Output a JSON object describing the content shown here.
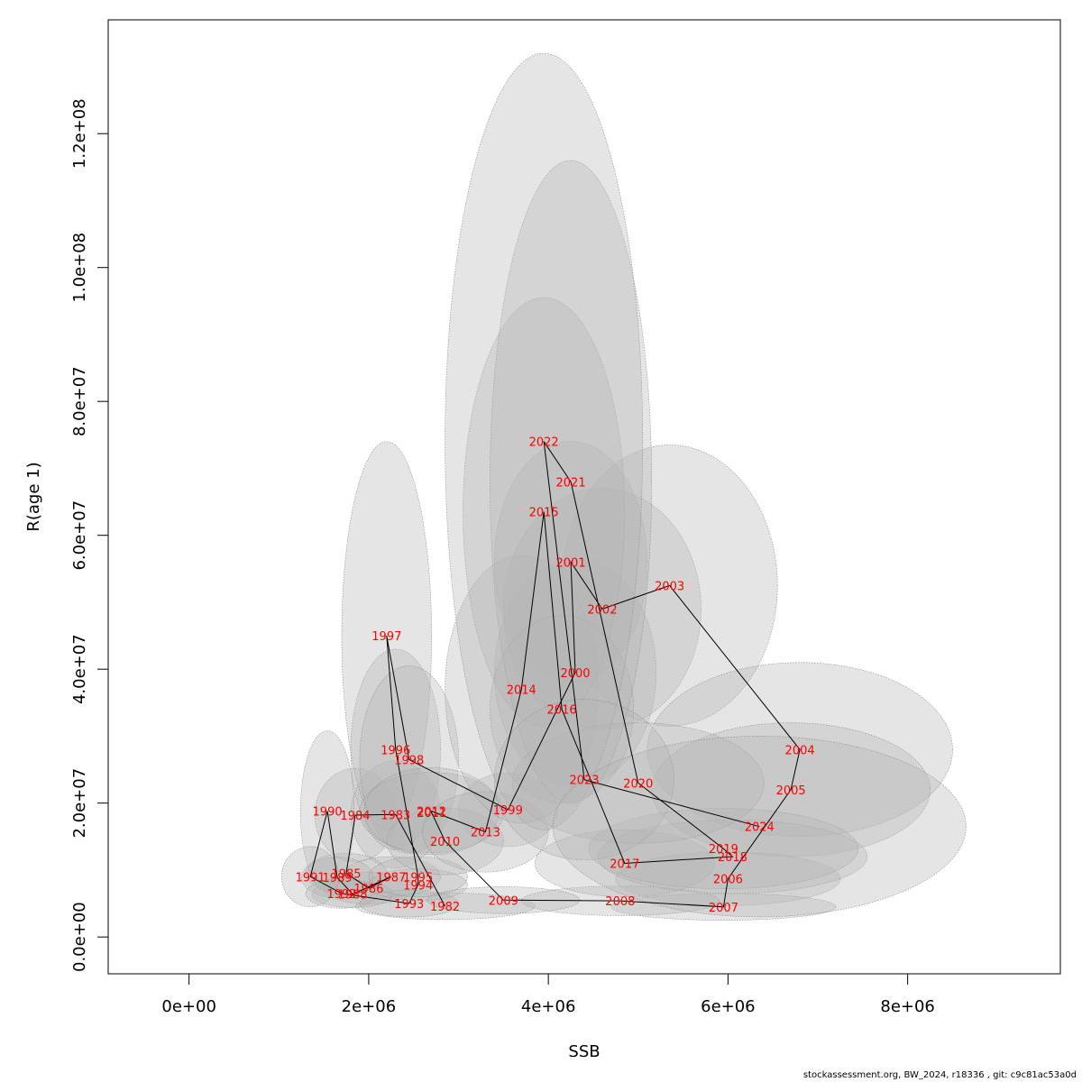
{
  "chart_data": {
    "type": "scatter",
    "subtype": "stock-recruitment trajectory with uncertainty ellipses",
    "xlabel": "SSB",
    "ylabel": "R(age 1)",
    "xlim": [
      -900000,
      9700000
    ],
    "ylim": [
      -5500000,
      137000000
    ],
    "xticks": [
      0,
      2000000,
      4000000,
      6000000,
      8000000
    ],
    "xtick_labels": [
      "0e+00",
      "2e+06",
      "4e+06",
      "6e+06",
      "8e+06"
    ],
    "yticks": [
      0,
      20000000,
      40000000,
      60000000,
      80000000,
      100000000,
      120000000
    ],
    "ytick_labels": [
      "0.0e+00",
      "2.0e+07",
      "4.0e+07",
      "6.0e+07",
      "8.0e+07",
      "1.0e+08",
      "1.2e+08"
    ],
    "label_color": "#ff0000",
    "ellipse_color": "#b4b4b4",
    "points": [
      {
        "year": "1982",
        "ssb": 2850000,
        "r": 4600000,
        "rx": 1000000,
        "ry": 2000000
      },
      {
        "year": "1983",
        "ssb": 2300000,
        "r": 18300000,
        "rx": 500000,
        "ry": 8000000
      },
      {
        "year": "1984",
        "ssb": 1850000,
        "r": 18200000,
        "rx": 450000,
        "ry": 7000000
      },
      {
        "year": "1985",
        "ssb": 1750000,
        "r": 9500000,
        "rx": 450000,
        "ry": 3000000
      },
      {
        "year": "1986",
        "ssb": 2000000,
        "r": 7300000,
        "rx": 500000,
        "ry": 2400000
      },
      {
        "year": "1987",
        "ssb": 2250000,
        "r": 9000000,
        "rx": 550000,
        "ry": 3000000
      },
      {
        "year": "1988",
        "ssb": 1820000,
        "r": 6400000,
        "rx": 450000,
        "ry": 2000000
      },
      {
        "year": "1989",
        "ssb": 1650000,
        "r": 8900000,
        "rx": 400000,
        "ry": 3000000
      },
      {
        "year": "1990",
        "ssb": 1540000,
        "r": 18800000,
        "rx": 300000,
        "ry": 12000000
      },
      {
        "year": "1991",
        "ssb": 1350000,
        "r": 9000000,
        "rx": 320000,
        "ry": 4500000
      },
      {
        "year": "1992",
        "ssb": 1700000,
        "r": 6500000,
        "rx": 400000,
        "ry": 2200000
      },
      {
        "year": "1993",
        "ssb": 2450000,
        "r": 5000000,
        "rx": 550000,
        "ry": 2000000
      },
      {
        "year": "1994",
        "ssb": 2550000,
        "r": 7800000,
        "rx": 550000,
        "ry": 2400000
      },
      {
        "year": "1995",
        "ssb": 2550000,
        "r": 9000000,
        "rx": 550000,
        "ry": 3000000
      },
      {
        "year": "1996",
        "ssb": 2300000,
        "r": 28000000,
        "rx": 500000,
        "ry": 15000000
      },
      {
        "year": "1997",
        "ssb": 2200000,
        "r": 45000000,
        "rx": 500000,
        "ry": 29000000
      },
      {
        "year": "1998",
        "ssb": 2450000,
        "r": 26500000,
        "rx": 550000,
        "ry": 14000000
      },
      {
        "year": "1999",
        "ssb": 3550000,
        "r": 19000000,
        "rx": 550000,
        "ry": 5500000
      },
      {
        "year": "2000",
        "ssb": 4300000,
        "r": 39500000,
        "rx": 900000,
        "ry": 17000000
      },
      {
        "year": "2001",
        "ssb": 4250000,
        "r": 56000000,
        "rx": 850000,
        "ry": 18000000
      },
      {
        "year": "2002",
        "ssb": 4600000,
        "r": 49000000,
        "rx": 1100000,
        "ry": 18000000
      },
      {
        "year": "2003",
        "ssb": 5350000,
        "r": 52500000,
        "rx": 1200000,
        "ry": 21000000
      },
      {
        "year": "2004",
        "ssb": 6800000,
        "r": 28000000,
        "rx": 1700000,
        "ry": 13000000
      },
      {
        "year": "2005",
        "ssb": 6700000,
        "r": 22000000,
        "rx": 1550000,
        "ry": 10000000
      },
      {
        "year": "2006",
        "ssb": 6000000,
        "r": 8700000,
        "rx": 1250000,
        "ry": 4000000
      },
      {
        "year": "2007",
        "ssb": 5950000,
        "r": 4500000,
        "rx": 1250000,
        "ry": 2000000
      },
      {
        "year": "2008",
        "ssb": 4800000,
        "r": 5400000,
        "rx": 1100000,
        "ry": 2200000
      },
      {
        "year": "2009",
        "ssb": 3500000,
        "r": 5500000,
        "rx": 850000,
        "ry": 2000000
      },
      {
        "year": "2010",
        "ssb": 2850000,
        "r": 14300000,
        "rx": 650000,
        "ry": 5000000
      },
      {
        "year": "2011",
        "ssb": 2700000,
        "r": 18600000,
        "rx": 800000,
        "ry": 6000000
      },
      {
        "year": "2012",
        "ssb": 2700000,
        "r": 18800000,
        "rx": 750000,
        "ry": 6500000
      },
      {
        "year": "2013",
        "ssb": 3300000,
        "r": 15700000,
        "rx": 700000,
        "ry": 6000000
      },
      {
        "year": "2014",
        "ssb": 3700000,
        "r": 37000000,
        "rx": 850000,
        "ry": 20000000
      },
      {
        "year": "2015",
        "ssb": 3950000,
        "r": 63500000,
        "rx": 900000,
        "ry": 32000000
      },
      {
        "year": "2016",
        "ssb": 4150000,
        "r": 34000000,
        "rx": 800000,
        "ry": 14000000
      },
      {
        "year": "2017",
        "ssb": 4850000,
        "r": 11000000,
        "rx": 1000000,
        "ry": 5000000
      },
      {
        "year": "2018",
        "ssb": 6050000,
        "r": 12000000,
        "rx": 1500000,
        "ry": 5500000
      },
      {
        "year": "2019",
        "ssb": 5950000,
        "r": 13200000,
        "rx": 1500000,
        "ry": 6000000
      },
      {
        "year": "2020",
        "ssb": 5000000,
        "r": 23000000,
        "rx": 1400000,
        "ry": 9000000
      },
      {
        "year": "2021",
        "ssb": 4250000,
        "r": 68000000,
        "rx": 900000,
        "ry": 48000000
      },
      {
        "year": "2022",
        "ssb": 3950000,
        "r": 74000000,
        "rx": 1100000,
        "ry": 58000000
      },
      {
        "year": "2023",
        "ssb": 4400000,
        "r": 23500000,
        "rx": 1000000,
        "ry": 12000000
      },
      {
        "year": "2024",
        "ssb": 6350000,
        "r": 16500000,
        "rx": 2300000,
        "ry": 13500000
      }
    ]
  },
  "footer": {
    "text": "stockassessment.org, BW_2024, r18336 , git: c9c81ac53a0d"
  }
}
